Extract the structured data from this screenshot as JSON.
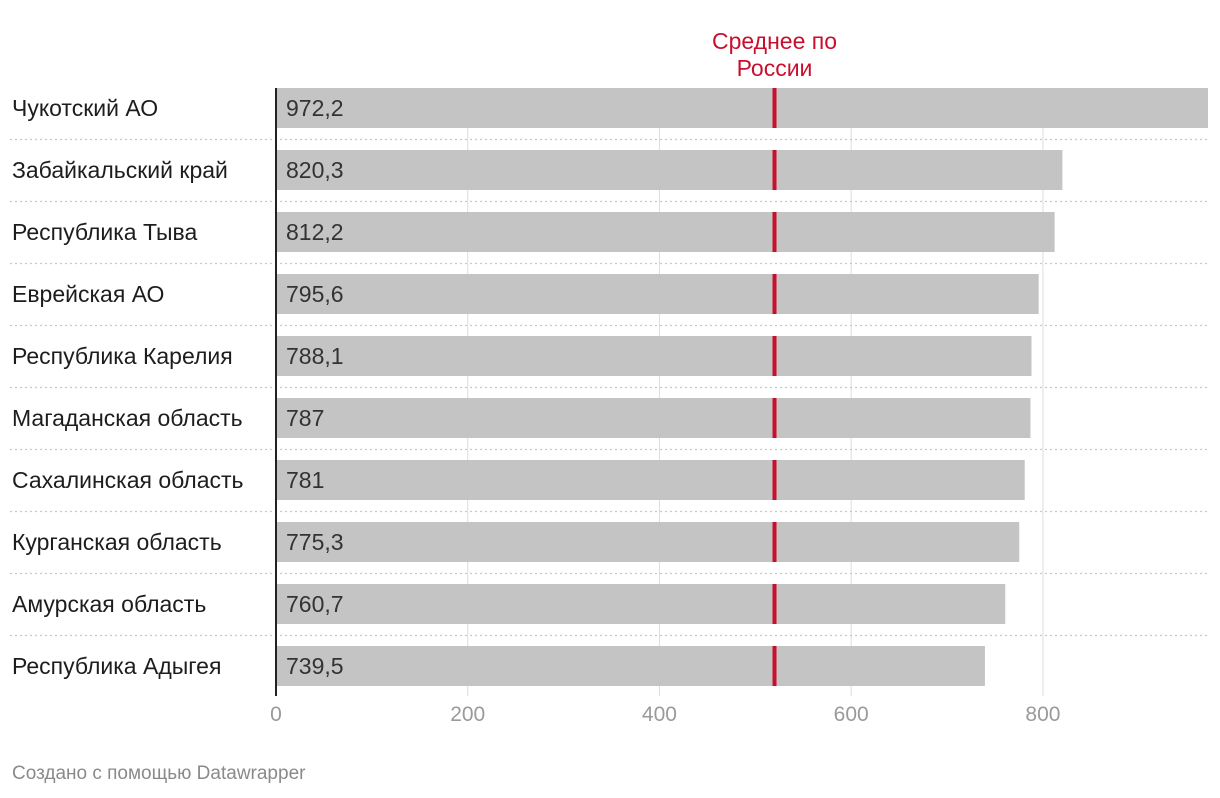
{
  "chart_data": {
    "type": "bar",
    "orientation": "horizontal",
    "categories": [
      "Чукотский АО",
      "Забайкальский край",
      "Республика Тыва",
      "Еврейская АО",
      "Республика Карелия",
      "Магаданская область",
      "Сахалинская область",
      "Курганская область",
      "Амурская область",
      "Республика Адыгея"
    ],
    "values": [
      972.2,
      820.3,
      812.2,
      795.6,
      788.1,
      787,
      781,
      775.3,
      760.7,
      739.5
    ],
    "value_labels": [
      "972,2",
      "820,3",
      "812,2",
      "795,6",
      "788,1",
      "787",
      "781",
      "775,3",
      "760,7",
      "739,5"
    ],
    "xlim": [
      0,
      972.2
    ],
    "xticks": [
      0,
      200,
      400,
      600,
      800
    ],
    "reference_line": {
      "value": 520,
      "label_lines": [
        "Среднее по",
        "России"
      ]
    },
    "grid": true,
    "colors": {
      "bar": "#c4c4c4",
      "reference": "#c8102e",
      "grid": "#dddddd",
      "row_separator": "#c8c8c8",
      "axis": "#222222"
    }
  },
  "footer": {
    "credit": "Создано с помощью Datawrapper"
  }
}
